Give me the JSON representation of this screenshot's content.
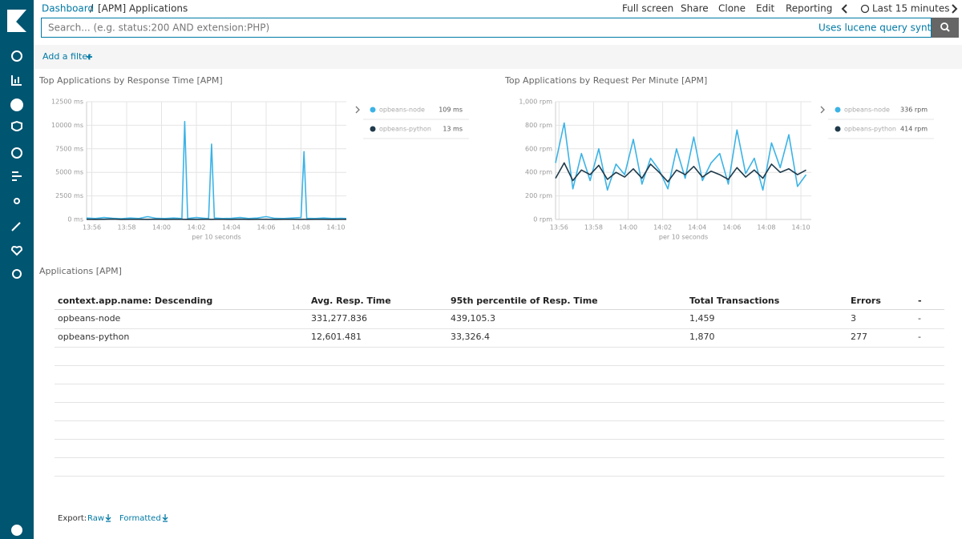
{
  "header": {
    "breadcrumb": [
      "Dashboard",
      "[APM] Applications"
    ],
    "separator": "/",
    "menu": [
      "Full screen",
      "Share",
      "Clone",
      "Edit",
      "Reporting"
    ],
    "time_range": "Last 15 minutes"
  },
  "search": {
    "placeholder": "Search... (e.g. status:200 AND extension:PHP)",
    "syntax_link": "Uses lucene query syntax",
    "add_filter": "Add a filter"
  },
  "chart_data": [
    {
      "type": "line",
      "title": "Top Applications by Response Time [APM]",
      "x_label": "per 10 seconds",
      "x": [
        835.7,
        836.2,
        836.7,
        837.2,
        837.7,
        838.2,
        838.7,
        839.2,
        839.7,
        840.2,
        840.7,
        841.17,
        841.33,
        841.5,
        842.0,
        842.5,
        842.7,
        842.87,
        843.03,
        843.5,
        844.0,
        844.5,
        845.0,
        845.5,
        846.0,
        846.5,
        847.0,
        847.5,
        848.0,
        848.17,
        848.33,
        848.8,
        849.3,
        849.8,
        850.3,
        850.6
      ],
      "xlim": [
        835.7,
        850.6
      ],
      "xticks": [
        {
          "value": 836,
          "label": "13:56"
        },
        {
          "value": 838,
          "label": "13:58"
        },
        {
          "value": 840,
          "label": "14:00"
        },
        {
          "value": 842,
          "label": "14:02"
        },
        {
          "value": 844,
          "label": "14:04"
        },
        {
          "value": 846,
          "label": "14:06"
        },
        {
          "value": 848,
          "label": "14:08"
        },
        {
          "value": 850,
          "label": "14:10"
        }
      ],
      "ylim": [
        0,
        12500
      ],
      "yticks": [
        {
          "value": 0,
          "label": "0 ms"
        },
        {
          "value": 2500,
          "label": "2500 ms"
        },
        {
          "value": 5000,
          "label": "5000 ms"
        },
        {
          "value": 7500,
          "label": "7500 ms"
        },
        {
          "value": 10000,
          "label": "10000 ms"
        },
        {
          "value": 12500,
          "label": "12500 ms"
        }
      ],
      "grid": true,
      "series": [
        {
          "name": "opbeans-node",
          "color": "#3cb3e6",
          "legend_value": "109 ms",
          "values": [
            150,
            100,
            200,
            120,
            80,
            150,
            100,
            300,
            120,
            100,
            150,
            100,
            10400,
            100,
            200,
            120,
            100,
            8000,
            150,
            100,
            120,
            200,
            100,
            150,
            300,
            120,
            100,
            150,
            200,
            7200,
            120,
            100,
            150,
            100,
            120,
            100
          ]
        },
        {
          "name": "opbeans-python",
          "color": "#1f3a4a",
          "legend_value": "13 ms",
          "values": [
            20,
            10,
            15,
            30,
            10,
            20,
            15,
            10,
            25,
            10,
            15,
            20,
            10,
            15,
            10,
            20,
            15,
            10,
            20,
            15,
            10,
            25,
            10,
            15,
            20,
            10,
            15,
            20,
            10,
            15,
            10,
            20,
            15,
            10,
            20,
            13
          ]
        }
      ]
    },
    {
      "type": "line",
      "title": "Top Applications by Request Per Minute [APM]",
      "x_label": "per 10 seconds",
      "x": [
        835.8,
        836.3,
        836.8,
        837.3,
        837.8,
        838.3,
        838.8,
        839.3,
        839.8,
        840.3,
        840.8,
        841.3,
        841.8,
        842.3,
        842.8,
        843.3,
        843.8,
        844.3,
        844.8,
        845.3,
        845.8,
        846.3,
        846.8,
        847.3,
        847.8,
        848.3,
        848.8,
        849.3,
        849.8,
        850.3
      ],
      "xlim": [
        835.8,
        850.6
      ],
      "xticks": [
        {
          "value": 836,
          "label": "13:56"
        },
        {
          "value": 838,
          "label": "13:58"
        },
        {
          "value": 840,
          "label": "14:00"
        },
        {
          "value": 842,
          "label": "14:02"
        },
        {
          "value": 844,
          "label": "14:04"
        },
        {
          "value": 846,
          "label": "14:06"
        },
        {
          "value": 848,
          "label": "14:08"
        },
        {
          "value": 850,
          "label": "14:10"
        }
      ],
      "ylim": [
        0,
        1000
      ],
      "yticks": [
        {
          "value": 0,
          "label": "0 rpm"
        },
        {
          "value": 200,
          "label": "200 rpm"
        },
        {
          "value": 400,
          "label": "400 rpm"
        },
        {
          "value": 600,
          "label": "600 rpm"
        },
        {
          "value": 800,
          "label": "800 rpm"
        },
        {
          "value": 1000,
          "label": "1,000 rpm"
        }
      ],
      "grid": true,
      "series": [
        {
          "name": "opbeans-node",
          "color": "#3cb3e6",
          "legend_value": "336 rpm",
          "values": [
            480,
            820,
            260,
            560,
            330,
            600,
            250,
            470,
            380,
            680,
            300,
            520,
            420,
            260,
            600,
            350,
            700,
            330,
            480,
            560,
            300,
            760,
            390,
            520,
            250,
            650,
            440,
            720,
            280,
            380
          ]
        },
        {
          "name": "opbeans-python",
          "color": "#1f3a4a",
          "legend_value": "414 rpm",
          "values": [
            350,
            480,
            330,
            420,
            380,
            460,
            340,
            400,
            360,
            430,
            350,
            470,
            400,
            320,
            420,
            380,
            450,
            360,
            410,
            380,
            340,
            440,
            360,
            420,
            350,
            470,
            400,
            430,
            380,
            420
          ]
        }
      ]
    }
  ],
  "table": {
    "title": "Applications [APM]",
    "columns": [
      "context.app.name: Descending",
      "Avg. Resp. Time",
      "95th percentile of Resp. Time",
      "Total Transactions",
      "Errors",
      "-"
    ],
    "rows": [
      [
        "opbeans-node",
        "331,277.836",
        "439,105.3",
        "1,459",
        "3",
        "-"
      ],
      [
        "opbeans-python",
        "12,601.481",
        "33,326.4",
        "1,870",
        "277",
        "-"
      ]
    ],
    "export_label": "Export:",
    "export_links": [
      "Raw",
      "Formatted"
    ]
  }
}
